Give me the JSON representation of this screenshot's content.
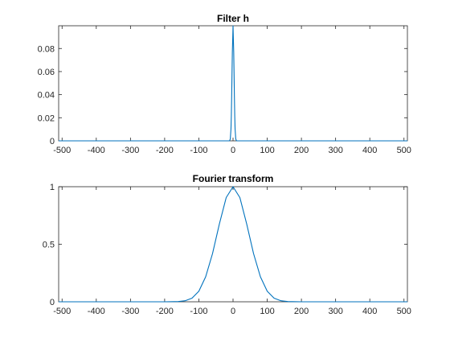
{
  "chart_data": [
    {
      "type": "line",
      "title": "Filter h",
      "xlabel": "",
      "ylabel": "",
      "xlim": [
        -510,
        510
      ],
      "ylim": [
        0,
        0.0997
      ],
      "xticks": [
        "-500",
        "-400",
        "-300",
        "-200",
        "-100",
        "0",
        "100",
        "200",
        "300",
        "400",
        "500"
      ],
      "yticks": [
        "0",
        "0.02",
        "0.04",
        "0.06",
        "0.08"
      ],
      "grid": false,
      "series": [
        {
          "color": "#0072BD",
          "x": [
            -510,
            -20,
            -12,
            -10,
            -8,
            -6,
            -5,
            -4,
            -3,
            -2,
            -1,
            0,
            1,
            2,
            3,
            4,
            5,
            6,
            8,
            10,
            12,
            20,
            510
          ],
          "y": [
            0,
            0,
            1e-05,
            0.00016,
            0.00163,
            0.01047,
            0.02148,
            0.03805,
            0.05818,
            0.07684,
            0.08769,
            0.0997,
            0.08769,
            0.07684,
            0.05818,
            0.03805,
            0.02148,
            0.01047,
            0.00163,
            0.00016,
            1e-05,
            0,
            0
          ]
        }
      ]
    },
    {
      "type": "line",
      "title": "Fourier transform",
      "xlabel": "",
      "ylabel": "",
      "xlim": [
        -510,
        510
      ],
      "ylim": [
        0,
        1
      ],
      "xticks": [
        "-500",
        "-400",
        "-300",
        "-200",
        "-100",
        "0",
        "100",
        "200",
        "300",
        "400",
        "500"
      ],
      "yticks": [
        "0",
        "0.5",
        "1"
      ],
      "grid": false,
      "series": [
        {
          "color": "#0072BD",
          "x": [
            -510,
            -200,
            -160,
            -140,
            -120,
            -100,
            -80,
            -60,
            -40,
            -20,
            0,
            20,
            40,
            60,
            80,
            100,
            120,
            140,
            160,
            200,
            510
          ],
          "y": [
            0,
            0,
            0.0021,
            0.0089,
            0.0312,
            0.0917,
            0.2176,
            0.4186,
            0.6757,
            0.9055,
            1,
            0.9055,
            0.6757,
            0.4186,
            0.2176,
            0.0917,
            0.0312,
            0.0089,
            0.0021,
            0,
            0
          ]
        }
      ]
    }
  ]
}
